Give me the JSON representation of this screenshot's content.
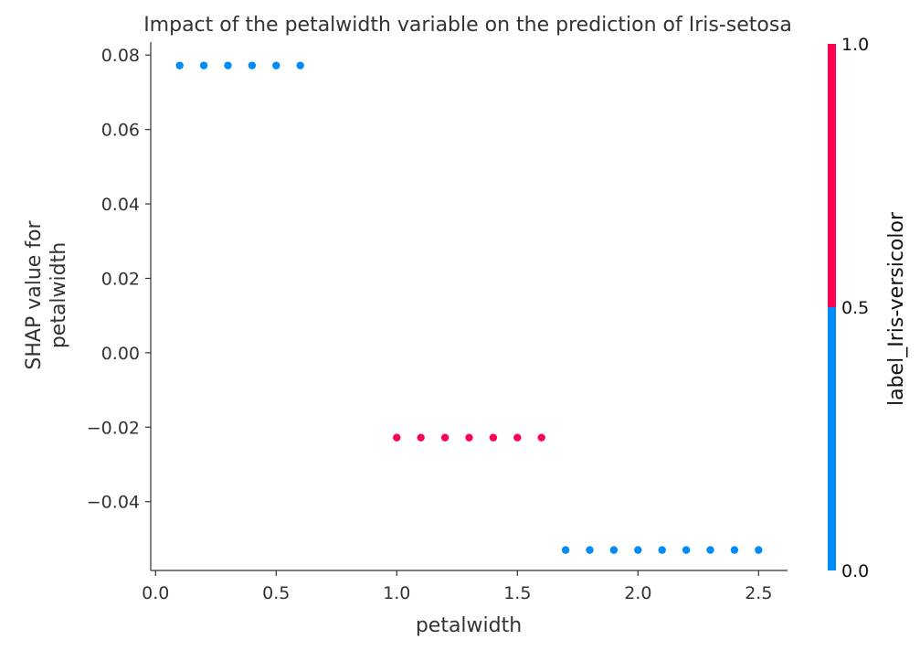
{
  "chart_data": {
    "type": "scatter",
    "title": "Impact of the petalwidth variable on the prediction of Iris-setosa",
    "xlabel": "petalwidth",
    "ylabel_lines": [
      "SHAP value for",
      "petalwidth"
    ],
    "xlim": [
      -0.02,
      2.62
    ],
    "ylim": [
      -0.0585,
      0.0835
    ],
    "xticks": [
      0.0,
      0.5,
      1.0,
      1.5,
      2.0,
      2.5
    ],
    "xtick_labels": [
      "0.0",
      "0.5",
      "1.0",
      "1.5",
      "2.0",
      "2.5"
    ],
    "yticks": [
      0.08,
      0.06,
      0.04,
      0.02,
      0.0,
      -0.02,
      -0.04
    ],
    "ytick_labels": [
      "0.08",
      "0.06",
      "0.04",
      "0.02",
      "0.00",
      "−0.02",
      "−0.04"
    ],
    "colorbar": {
      "label": "label_Iris-versicolor",
      "ticks": [
        0.0,
        0.5,
        1.0
      ],
      "tick_labels": [
        "0.0",
        "0.5",
        "1.0"
      ],
      "color_low": "#008bfb",
      "color_high": "#ff0052"
    },
    "points": [
      {
        "x": 0.1,
        "y": 0.0772,
        "c": 0
      },
      {
        "x": 0.2,
        "y": 0.0772,
        "c": 0
      },
      {
        "x": 0.3,
        "y": 0.0772,
        "c": 0
      },
      {
        "x": 0.4,
        "y": 0.0772,
        "c": 0
      },
      {
        "x": 0.5,
        "y": 0.0772,
        "c": 0
      },
      {
        "x": 0.6,
        "y": 0.0772,
        "c": 0
      },
      {
        "x": 1.0,
        "y": -0.0228,
        "c": 1
      },
      {
        "x": 1.1,
        "y": -0.0228,
        "c": 1
      },
      {
        "x": 1.2,
        "y": -0.0228,
        "c": 1
      },
      {
        "x": 1.3,
        "y": -0.0228,
        "c": 1
      },
      {
        "x": 1.4,
        "y": -0.0228,
        "c": 1
      },
      {
        "x": 1.5,
        "y": -0.0228,
        "c": 1
      },
      {
        "x": 1.6,
        "y": -0.0228,
        "c": 1
      },
      {
        "x": 1.7,
        "y": -0.053,
        "c": 0
      },
      {
        "x": 1.8,
        "y": -0.053,
        "c": 0
      },
      {
        "x": 1.9,
        "y": -0.053,
        "c": 0
      },
      {
        "x": 2.0,
        "y": -0.053,
        "c": 0
      },
      {
        "x": 2.1,
        "y": -0.053,
        "c": 0
      },
      {
        "x": 2.2,
        "y": -0.053,
        "c": 0
      },
      {
        "x": 2.3,
        "y": -0.053,
        "c": 0
      },
      {
        "x": 2.4,
        "y": -0.053,
        "c": 0
      },
      {
        "x": 2.5,
        "y": -0.053,
        "c": 0
      }
    ]
  }
}
